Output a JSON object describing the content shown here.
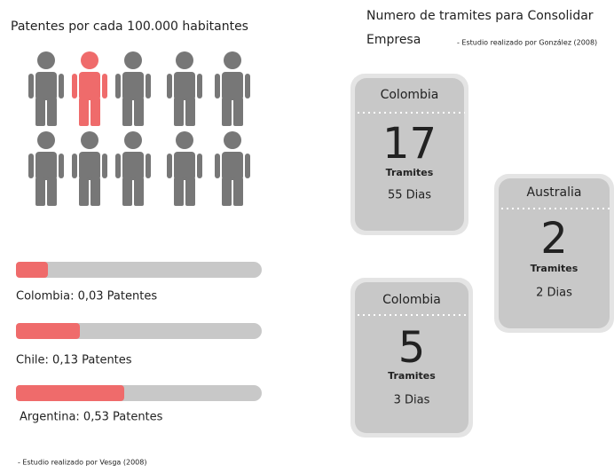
{
  "left": {
    "title": "Patentes por cada 100.000 habitantes",
    "bars": [
      {
        "label": "Colombia: 0,03 Patentes"
      },
      {
        "label": "Chile: 0,13 Patentes"
      },
      {
        "label": "Argentina: 0,53 Patentes"
      }
    ],
    "source": "- Estudio realizado por Vesga (2008)"
  },
  "right": {
    "title_lines": [
      "Numero de tramites para Consolidar",
      "Empresa"
    ],
    "source": "- Estudio realizado por González (2008)",
    "cards": [
      {
        "country": "Colombia",
        "number": 17,
        "unit": "Tramites",
        "days": "55 Dias"
      },
      {
        "country": "Australia",
        "number": 2,
        "unit": "Tramites",
        "days": "2  Dias"
      },
      {
        "country": "Colombia",
        "number": 5,
        "unit": "Tramites",
        "days": "3 Dias"
      }
    ]
  }
}
